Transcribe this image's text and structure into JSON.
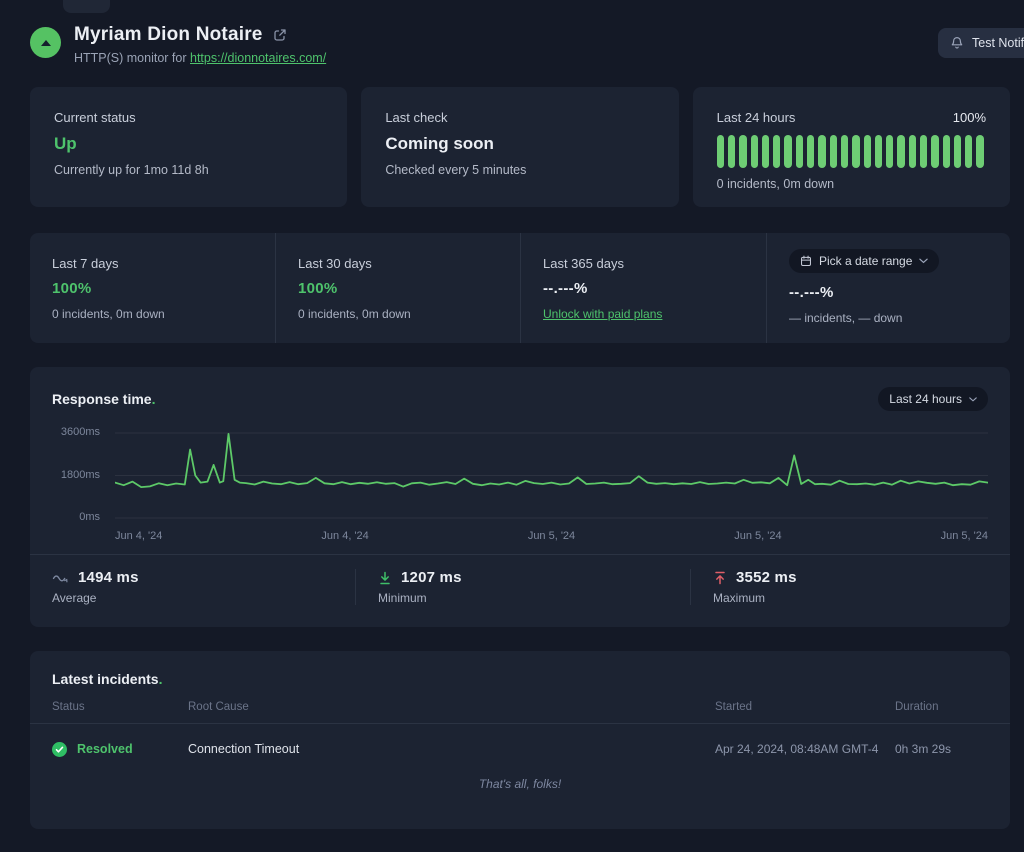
{
  "colors": {
    "accent_green": "#4ec36c",
    "bar_green": "#6ecd74",
    "line_green": "#5dc968",
    "max_red": "#e05f68",
    "avg_slate": "#7e89a1"
  },
  "header": {
    "title": "Myriam Dion Notaire",
    "subtitle_prefix": "HTTP(S) monitor for ",
    "url": "https://dionnotaires.com/",
    "test_button": "Test Notifications"
  },
  "status": {
    "current_status": {
      "label": "Current status",
      "value": "Up",
      "sub": "Currently up for 1mo 11d 8h"
    },
    "last_check": {
      "label": "Last check",
      "value": "Coming soon",
      "sub": "Checked every 5 minutes"
    },
    "last_24h": {
      "label": "Last 24 hours",
      "percent": "100%",
      "sub": "0 incidents, 0m down",
      "bar_count": 24
    }
  },
  "uptime": {
    "d7": {
      "label": "Last 7 days",
      "value": "100%",
      "sub": "0 incidents, 0m down"
    },
    "d30": {
      "label": "Last 30 days",
      "value": "100%",
      "sub": "0 incidents, 0m down"
    },
    "d365": {
      "label": "Last 365 days",
      "value": "--.---%",
      "link": "Unlock with paid plans"
    },
    "custom": {
      "button": "Pick a date range",
      "value": "--.---%",
      "sub": "— incidents, — down"
    }
  },
  "response_time": {
    "title": "Response time",
    "dot": ".",
    "range": "Last 24 hours",
    "average": {
      "value": "1494 ms",
      "label": "Average"
    },
    "minimum": {
      "value": "1207 ms",
      "label": "Minimum"
    },
    "maximum": {
      "value": "3552 ms",
      "label": "Maximum"
    }
  },
  "chart_data": {
    "type": "line",
    "title": "Response time",
    "unit": "ms",
    "x_range": "Last 24 hours",
    "x_tick_labels": [
      "Jun 4, '24",
      "Jun 4, '24",
      "Jun 5, '24",
      "Jun 5, '24",
      "Jun 5, '24"
    ],
    "y_axis": {
      "ticks_ms": [
        0,
        1800,
        3600
      ],
      "label_suffix": "ms"
    },
    "grid": true,
    "line_color": "#5dc968",
    "summary": {
      "average_ms": 1494,
      "minimum_ms": 1207,
      "maximum_ms": 3552
    },
    "series": [
      {
        "name": "Response time (ms)",
        "points_pct_ms": [
          [
            0,
            1500
          ],
          [
            1,
            1390
          ],
          [
            2,
            1540
          ],
          [
            3,
            1310
          ],
          [
            4,
            1340
          ],
          [
            5,
            1470
          ],
          [
            6,
            1390
          ],
          [
            7,
            1460
          ],
          [
            8,
            1420
          ],
          [
            8.6,
            2900
          ],
          [
            9.2,
            1800
          ],
          [
            9.8,
            1500
          ],
          [
            10.6,
            1540
          ],
          [
            11.3,
            2250
          ],
          [
            12,
            1500
          ],
          [
            12.4,
            1560
          ],
          [
            13,
            3560
          ],
          [
            13.7,
            1620
          ],
          [
            14.3,
            1500
          ],
          [
            15,
            1480
          ],
          [
            16,
            1420
          ],
          [
            17,
            1540
          ],
          [
            18,
            1460
          ],
          [
            19,
            1430
          ],
          [
            20,
            1520
          ],
          [
            21,
            1430
          ],
          [
            22,
            1480
          ],
          [
            23,
            1700
          ],
          [
            24,
            1470
          ],
          [
            25,
            1430
          ],
          [
            26,
            1520
          ],
          [
            27,
            1430
          ],
          [
            28,
            1490
          ],
          [
            29,
            1450
          ],
          [
            30,
            1510
          ],
          [
            31,
            1450
          ],
          [
            32,
            1480
          ],
          [
            33,
            1330
          ],
          [
            34,
            1470
          ],
          [
            35,
            1500
          ],
          [
            36,
            1410
          ],
          [
            37,
            1460
          ],
          [
            38,
            1520
          ],
          [
            39,
            1440
          ],
          [
            40,
            1670
          ],
          [
            41,
            1450
          ],
          [
            42,
            1390
          ],
          [
            43,
            1460
          ],
          [
            44,
            1420
          ],
          [
            45,
            1500
          ],
          [
            46,
            1410
          ],
          [
            47,
            1570
          ],
          [
            48,
            1480
          ],
          [
            49,
            1440
          ],
          [
            50,
            1500
          ],
          [
            51,
            1420
          ],
          [
            52,
            1460
          ],
          [
            53,
            1720
          ],
          [
            54,
            1440
          ],
          [
            55,
            1460
          ],
          [
            56,
            1500
          ],
          [
            57,
            1430
          ],
          [
            58,
            1450
          ],
          [
            59,
            1480
          ],
          [
            60,
            1770
          ],
          [
            61,
            1500
          ],
          [
            62,
            1450
          ],
          [
            63,
            1480
          ],
          [
            64,
            1430
          ],
          [
            65,
            1470
          ],
          [
            66,
            1440
          ],
          [
            67,
            1520
          ],
          [
            68,
            1440
          ],
          [
            69,
            1460
          ],
          [
            70,
            1500
          ],
          [
            71,
            1460
          ],
          [
            72,
            1620
          ],
          [
            73,
            1490
          ],
          [
            74,
            1510
          ],
          [
            75,
            1470
          ],
          [
            76,
            1700
          ],
          [
            77,
            1390
          ],
          [
            77.8,
            2650
          ],
          [
            78.6,
            1440
          ],
          [
            79.4,
            1620
          ],
          [
            80.2,
            1430
          ],
          [
            81,
            1450
          ],
          [
            82,
            1410
          ],
          [
            83,
            1580
          ],
          [
            84,
            1440
          ],
          [
            85,
            1430
          ],
          [
            86,
            1460
          ],
          [
            87,
            1410
          ],
          [
            88,
            1500
          ],
          [
            89,
            1410
          ],
          [
            90,
            1580
          ],
          [
            91,
            1460
          ],
          [
            92,
            1550
          ],
          [
            93,
            1490
          ],
          [
            94,
            1450
          ],
          [
            95,
            1500
          ],
          [
            96,
            1390
          ],
          [
            97,
            1430
          ],
          [
            98,
            1410
          ],
          [
            99,
            1550
          ],
          [
            100,
            1500
          ]
        ]
      }
    ]
  },
  "incidents": {
    "title": "Latest incidents",
    "dot": ".",
    "columns": [
      "Status",
      "Root Cause",
      "Started",
      "Duration"
    ],
    "rows": [
      {
        "status": "Resolved",
        "root_cause": "Connection Timeout",
        "started": "Apr 24, 2024, 08:48AM GMT-4",
        "duration": "0h 3m 29s"
      }
    ],
    "footer": "That's all, folks!"
  }
}
